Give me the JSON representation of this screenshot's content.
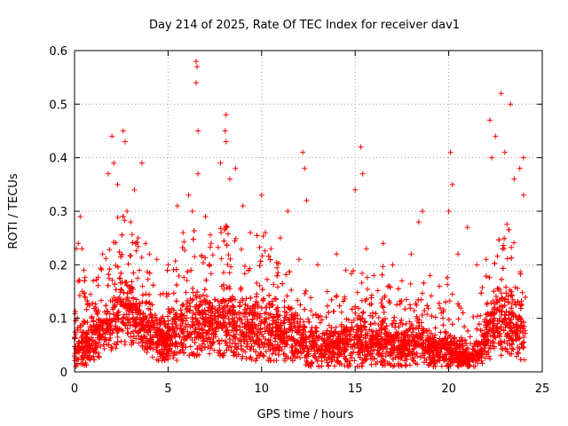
{
  "chart_data": {
    "type": "scatter",
    "title": "Day 214 of 2025, Rate Of TEC Index for receiver dav1",
    "xlabel": "GPS time / hours",
    "ylabel": "ROTI / TECUs",
    "xlim": [
      0,
      25
    ],
    "ylim": [
      0,
      0.6
    ],
    "xticks": [
      "0",
      "5",
      "10",
      "15",
      "20",
      "25"
    ],
    "yticks": [
      "0",
      "0.1",
      "0.2",
      "0.3",
      "0.4",
      "0.5",
      "0.6"
    ],
    "xtick_values": [
      0,
      5,
      10,
      15,
      20,
      25
    ],
    "ytick_values": [
      0,
      0.1,
      0.2,
      0.3,
      0.4,
      0.5,
      0.6
    ],
    "grid": true,
    "marker": "+",
    "color": "#ff0000",
    "points": [
      [
        0.1,
        0.23
      ],
      [
        0.2,
        0.24
      ],
      [
        0.3,
        0.29
      ],
      [
        0.4,
        0.23
      ],
      [
        0.5,
        0.19
      ],
      [
        1.0,
        0.17
      ],
      [
        1.5,
        0.22
      ],
      [
        1.8,
        0.37
      ],
      [
        2.0,
        0.44
      ],
      [
        2.1,
        0.39
      ],
      [
        2.3,
        0.35
      ],
      [
        2.6,
        0.45
      ],
      [
        2.7,
        0.43
      ],
      [
        2.8,
        0.3
      ],
      [
        3.0,
        0.28
      ],
      [
        3.2,
        0.34
      ],
      [
        3.4,
        0.25
      ],
      [
        3.6,
        0.39
      ],
      [
        3.8,
        0.24
      ],
      [
        4.0,
        0.22
      ],
      [
        4.4,
        0.21
      ],
      [
        5.0,
        0.2
      ],
      [
        5.5,
        0.31
      ],
      [
        5.8,
        0.26
      ],
      [
        6.1,
        0.33
      ],
      [
        6.3,
        0.3
      ],
      [
        6.5,
        0.58
      ],
      [
        6.55,
        0.57
      ],
      [
        6.5,
        0.54
      ],
      [
        6.6,
        0.45
      ],
      [
        6.6,
        0.37
      ],
      [
        7.0,
        0.29
      ],
      [
        7.3,
        0.24
      ],
      [
        7.8,
        0.39
      ],
      [
        8.1,
        0.48
      ],
      [
        8.05,
        0.45
      ],
      [
        8.1,
        0.43
      ],
      [
        8.3,
        0.36
      ],
      [
        8.6,
        0.38
      ],
      [
        9.0,
        0.31
      ],
      [
        9.4,
        0.26
      ],
      [
        10.0,
        0.33
      ],
      [
        10.2,
        0.26
      ],
      [
        10.5,
        0.23
      ],
      [
        11.0,
        0.25
      ],
      [
        11.4,
        0.3
      ],
      [
        12.0,
        0.21
      ],
      [
        12.2,
        0.41
      ],
      [
        12.3,
        0.38
      ],
      [
        12.4,
        0.32
      ],
      [
        13.0,
        0.2
      ],
      [
        13.5,
        0.15
      ],
      [
        14.0,
        0.22
      ],
      [
        14.5,
        0.19
      ],
      [
        15.0,
        0.34
      ],
      [
        15.3,
        0.42
      ],
      [
        15.4,
        0.37
      ],
      [
        15.6,
        0.23
      ],
      [
        16.0,
        0.18
      ],
      [
        16.5,
        0.24
      ],
      [
        17.0,
        0.2
      ],
      [
        17.5,
        0.17
      ],
      [
        18.0,
        0.22
      ],
      [
        18.4,
        0.28
      ],
      [
        18.6,
        0.3
      ],
      [
        19.0,
        0.18
      ],
      [
        19.5,
        0.16
      ],
      [
        20.0,
        0.3
      ],
      [
        20.1,
        0.41
      ],
      [
        20.2,
        0.35
      ],
      [
        20.5,
        0.22
      ],
      [
        21.0,
        0.27
      ],
      [
        21.5,
        0.2
      ],
      [
        22.0,
        0.21
      ],
      [
        22.2,
        0.47
      ],
      [
        22.3,
        0.4
      ],
      [
        22.5,
        0.44
      ],
      [
        22.8,
        0.52
      ],
      [
        23.0,
        0.41
      ],
      [
        23.3,
        0.5
      ],
      [
        23.5,
        0.36
      ],
      [
        23.8,
        0.38
      ],
      [
        24.0,
        0.4
      ],
      [
        24.0,
        0.33
      ]
    ],
    "band": [
      [
        0.0,
        0.01,
        0.2
      ],
      [
        0.5,
        0.01,
        0.18
      ],
      [
        1.0,
        0.02,
        0.15
      ],
      [
        1.5,
        0.03,
        0.22
      ],
      [
        2.0,
        0.04,
        0.27
      ],
      [
        2.5,
        0.05,
        0.3
      ],
      [
        3.0,
        0.05,
        0.27
      ],
      [
        3.5,
        0.04,
        0.24
      ],
      [
        4.0,
        0.03,
        0.2
      ],
      [
        4.5,
        0.02,
        0.18
      ],
      [
        5.0,
        0.02,
        0.2
      ],
      [
        5.5,
        0.02,
        0.24
      ],
      [
        6.0,
        0.03,
        0.26
      ],
      [
        6.5,
        0.03,
        0.28
      ],
      [
        7.0,
        0.03,
        0.27
      ],
      [
        7.5,
        0.03,
        0.27
      ],
      [
        8.0,
        0.03,
        0.28
      ],
      [
        8.5,
        0.03,
        0.26
      ],
      [
        9.0,
        0.02,
        0.24
      ],
      [
        9.5,
        0.02,
        0.25
      ],
      [
        10.0,
        0.02,
        0.26
      ],
      [
        10.5,
        0.02,
        0.23
      ],
      [
        11.0,
        0.02,
        0.22
      ],
      [
        11.5,
        0.02,
        0.21
      ],
      [
        12.0,
        0.02,
        0.2
      ],
      [
        12.5,
        0.01,
        0.16
      ],
      [
        13.0,
        0.01,
        0.14
      ],
      [
        13.5,
        0.01,
        0.15
      ],
      [
        14.0,
        0.01,
        0.17
      ],
      [
        14.5,
        0.01,
        0.18
      ],
      [
        15.0,
        0.01,
        0.2
      ],
      [
        15.5,
        0.01,
        0.19
      ],
      [
        16.0,
        0.01,
        0.18
      ],
      [
        16.5,
        0.01,
        0.2
      ],
      [
        17.0,
        0.01,
        0.17
      ],
      [
        17.5,
        0.01,
        0.15
      ],
      [
        18.0,
        0.01,
        0.17
      ],
      [
        18.5,
        0.01,
        0.2
      ],
      [
        19.0,
        0.01,
        0.15
      ],
      [
        19.5,
        0.01,
        0.13
      ],
      [
        20.0,
        0.01,
        0.2
      ],
      [
        20.5,
        0.01,
        0.13
      ],
      [
        21.0,
        0.01,
        0.1
      ],
      [
        21.5,
        0.01,
        0.11
      ],
      [
        22.0,
        0.02,
        0.2
      ],
      [
        22.5,
        0.03,
        0.26
      ],
      [
        23.0,
        0.03,
        0.28
      ],
      [
        23.5,
        0.03,
        0.27
      ],
      [
        24.0,
        0.02,
        0.3
      ]
    ],
    "dense": [
      [
        0.0,
        0.06
      ],
      [
        0.5,
        0.05
      ],
      [
        1.0,
        0.06
      ],
      [
        1.5,
        0.08
      ],
      [
        2.0,
        0.1
      ],
      [
        2.5,
        0.13
      ],
      [
        3.0,
        0.12
      ],
      [
        3.5,
        0.1
      ],
      [
        4.0,
        0.08
      ],
      [
        4.5,
        0.07
      ],
      [
        5.0,
        0.07
      ],
      [
        5.5,
        0.08
      ],
      [
        6.0,
        0.09
      ],
      [
        6.5,
        0.1
      ],
      [
        7.0,
        0.1
      ],
      [
        7.5,
        0.1
      ],
      [
        8.0,
        0.11
      ],
      [
        8.5,
        0.1
      ],
      [
        9.0,
        0.09
      ],
      [
        9.5,
        0.09
      ],
      [
        10.0,
        0.1
      ],
      [
        10.5,
        0.09
      ],
      [
        11.0,
        0.08
      ],
      [
        11.5,
        0.08
      ],
      [
        12.0,
        0.07
      ],
      [
        12.5,
        0.06
      ],
      [
        13.0,
        0.05
      ],
      [
        13.5,
        0.05
      ],
      [
        14.0,
        0.06
      ],
      [
        14.5,
        0.06
      ],
      [
        15.0,
        0.07
      ],
      [
        15.5,
        0.07
      ],
      [
        16.0,
        0.06
      ],
      [
        16.5,
        0.07
      ],
      [
        17.0,
        0.06
      ],
      [
        17.5,
        0.05
      ],
      [
        18.0,
        0.06
      ],
      [
        18.5,
        0.06
      ],
      [
        19.0,
        0.05
      ],
      [
        19.5,
        0.04
      ],
      [
        20.0,
        0.05
      ],
      [
        20.5,
        0.04
      ],
      [
        21.0,
        0.03
      ],
      [
        21.5,
        0.04
      ],
      [
        22.0,
        0.07
      ],
      [
        22.5,
        0.1
      ],
      [
        23.0,
        0.11
      ],
      [
        23.5,
        0.1
      ],
      [
        24.0,
        0.08
      ]
    ]
  }
}
